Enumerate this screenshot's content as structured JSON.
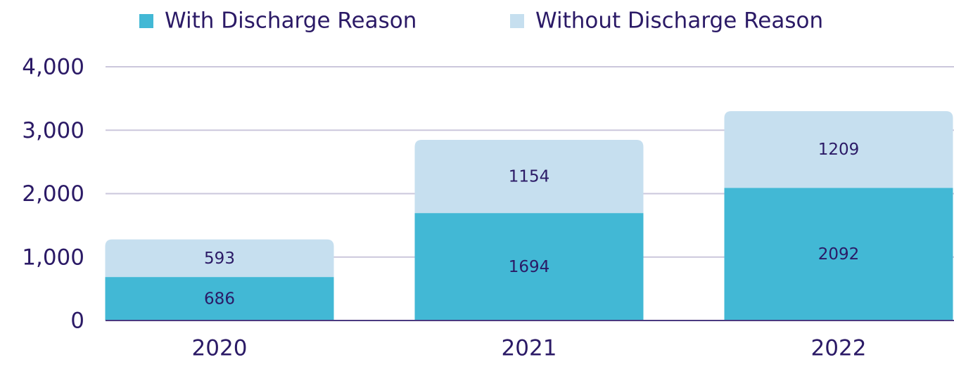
{
  "chart_data": {
    "type": "stacked_bar",
    "categories": [
      "2020",
      "2021",
      "2022"
    ],
    "series": [
      {
        "name": "With Discharge Reason",
        "color": "#42b8d5",
        "values": [
          686,
          1694,
          2092
        ]
      },
      {
        "name": "Without Discharge Reason",
        "color": "#c6dfef",
        "values": [
          593,
          1154,
          1209
        ]
      }
    ],
    "ylim": [
      0,
      4000
    ],
    "yticks": [
      0,
      {
        "value": 1000,
        "label": "1,000"
      },
      {
        "value": 2000,
        "label": "2,000"
      },
      {
        "value": 3000,
        "label": "3,000"
      },
      {
        "value": 4000,
        "label": "4,000"
      }
    ],
    "grid": true,
    "legend": "top"
  }
}
